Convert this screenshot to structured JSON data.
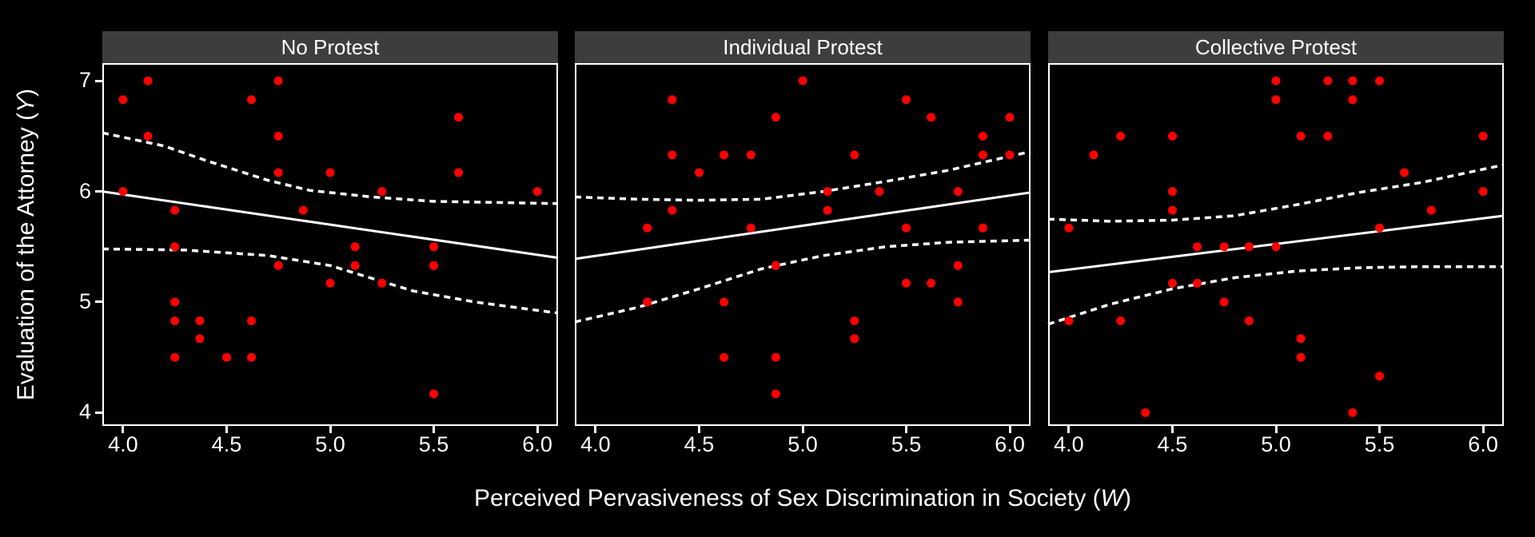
{
  "labels": {
    "x_prefix": "Perceived Pervasiveness of Sex Discrimination in Society (",
    "x_var": "W",
    "x_suffix": ")",
    "y_prefix": "Evaluation of the Attorney (",
    "y_var": "Y",
    "y_suffix": ")"
  },
  "chart_data": {
    "type": "scatter",
    "xlabel": "Perceived Pervasiveness of Sex Discrimination in Society (W)",
    "ylabel": "Evaluation of the Attorney (Y)",
    "x_range": [
      3.9,
      6.1
    ],
    "y_range": [
      3.88,
      7.16
    ],
    "x_ticks": {
      "values": [
        4.0,
        4.5,
        5.0,
        5.5,
        6.0
      ],
      "labels": [
        "4.0",
        "4.5",
        "5.0",
        "5.5",
        "6.0"
      ]
    },
    "y_ticks": {
      "values": [
        7,
        6,
        5,
        4
      ],
      "labels": [
        "7",
        "6",
        "5",
        "4"
      ]
    },
    "grid": "off",
    "legend": "none",
    "colors": {
      "background": "#000000",
      "panel_background": "#000000",
      "panel_border": "#ffffff",
      "strip_background": "#3d3d3d",
      "strip_text": "#ffffff",
      "point": "#ff0000",
      "fit_line": "#ffffff",
      "ci_line": "#ffffff",
      "tick": "#ffffff",
      "text": "#ffffff"
    },
    "facets": [
      {
        "label": "No Protest",
        "points": [
          [
            4.0,
            6.83
          ],
          [
            4.0,
            6.0
          ],
          [
            4.12,
            7.0
          ],
          [
            4.12,
            6.5
          ],
          [
            4.25,
            5.83
          ],
          [
            4.25,
            5.5
          ],
          [
            4.25,
            5.0
          ],
          [
            4.25,
            4.83
          ],
          [
            4.25,
            4.5
          ],
          [
            4.37,
            4.83
          ],
          [
            4.37,
            4.67
          ],
          [
            4.5,
            4.5
          ],
          [
            4.62,
            6.83
          ],
          [
            4.62,
            4.83
          ],
          [
            4.62,
            4.5
          ],
          [
            4.75,
            7.0
          ],
          [
            4.75,
            6.5
          ],
          [
            4.75,
            6.17
          ],
          [
            4.75,
            5.33
          ],
          [
            4.87,
            5.83
          ],
          [
            5.0,
            6.17
          ],
          [
            5.0,
            5.17
          ],
          [
            5.12,
            5.5
          ],
          [
            5.12,
            5.33
          ],
          [
            5.25,
            6.0
          ],
          [
            5.25,
            5.17
          ],
          [
            5.5,
            5.5
          ],
          [
            5.5,
            5.33
          ],
          [
            5.5,
            4.17
          ],
          [
            5.62,
            6.67
          ],
          [
            5.62,
            6.17
          ],
          [
            6.0,
            6.0
          ]
        ],
        "fit_line": [
          [
            3.9,
            6.0
          ],
          [
            6.1,
            5.4
          ]
        ],
        "ci_upper": [
          [
            3.9,
            6.53
          ],
          [
            4.2,
            6.41
          ],
          [
            4.4,
            6.28
          ],
          [
            4.7,
            6.1
          ],
          [
            4.9,
            6.01
          ],
          [
            5.2,
            5.95
          ],
          [
            5.5,
            5.91
          ],
          [
            5.8,
            5.9
          ],
          [
            6.1,
            5.89
          ]
        ],
        "ci_lower": [
          [
            3.9,
            5.48
          ],
          [
            4.3,
            5.47
          ],
          [
            4.7,
            5.42
          ],
          [
            5.0,
            5.33
          ],
          [
            5.4,
            5.1
          ],
          [
            5.7,
            5.0
          ],
          [
            6.1,
            4.9
          ]
        ]
      },
      {
        "label": "Individual Protest",
        "points": [
          [
            4.25,
            5.67
          ],
          [
            4.25,
            5.0
          ],
          [
            4.37,
            6.83
          ],
          [
            4.37,
            6.33
          ],
          [
            4.37,
            5.83
          ],
          [
            4.5,
            6.17
          ],
          [
            4.62,
            6.33
          ],
          [
            4.62,
            5.0
          ],
          [
            4.62,
            4.5
          ],
          [
            4.75,
            6.33
          ],
          [
            4.75,
            5.67
          ],
          [
            4.87,
            6.67
          ],
          [
            4.87,
            5.33
          ],
          [
            4.87,
            4.5
          ],
          [
            4.87,
            4.17
          ],
          [
            5.0,
            7.0
          ],
          [
            5.12,
            6.0
          ],
          [
            5.12,
            5.83
          ],
          [
            5.25,
            6.33
          ],
          [
            5.25,
            4.83
          ],
          [
            5.25,
            4.67
          ],
          [
            5.37,
            6.0
          ],
          [
            5.5,
            6.83
          ],
          [
            5.5,
            5.67
          ],
          [
            5.5,
            5.17
          ],
          [
            5.62,
            6.67
          ],
          [
            5.62,
            5.17
          ],
          [
            5.75,
            6.0
          ],
          [
            5.75,
            5.33
          ],
          [
            5.75,
            5.0
          ],
          [
            5.87,
            6.5
          ],
          [
            5.87,
            6.33
          ],
          [
            5.87,
            5.67
          ],
          [
            6.0,
            6.67
          ],
          [
            6.0,
            6.33
          ]
        ],
        "fit_line": [
          [
            3.9,
            5.39
          ],
          [
            6.1,
            5.99
          ]
        ],
        "ci_upper": [
          [
            3.9,
            5.95
          ],
          [
            4.2,
            5.93
          ],
          [
            4.5,
            5.92
          ],
          [
            4.8,
            5.93
          ],
          [
            5.1,
            6.0
          ],
          [
            5.4,
            6.09
          ],
          [
            5.7,
            6.19
          ],
          [
            6.1,
            6.36
          ]
        ],
        "ci_lower": [
          [
            3.9,
            4.82
          ],
          [
            4.2,
            4.95
          ],
          [
            4.5,
            5.12
          ],
          [
            4.8,
            5.3
          ],
          [
            5.1,
            5.42
          ],
          [
            5.4,
            5.5
          ],
          [
            5.7,
            5.54
          ],
          [
            6.1,
            5.56
          ]
        ]
      },
      {
        "label": "Collective Protest",
        "points": [
          [
            4.0,
            5.67
          ],
          [
            4.0,
            4.83
          ],
          [
            4.12,
            6.33
          ],
          [
            4.25,
            6.5
          ],
          [
            4.25,
            4.83
          ],
          [
            4.37,
            4.0
          ],
          [
            4.5,
            6.5
          ],
          [
            4.5,
            6.0
          ],
          [
            4.5,
            5.83
          ],
          [
            4.5,
            5.17
          ],
          [
            4.62,
            5.5
          ],
          [
            4.62,
            5.17
          ],
          [
            4.75,
            5.5
          ],
          [
            4.75,
            5.0
          ],
          [
            4.87,
            5.5
          ],
          [
            4.87,
            4.83
          ],
          [
            5.0,
            7.0
          ],
          [
            5.0,
            6.83
          ],
          [
            5.0,
            5.5
          ],
          [
            5.12,
            6.5
          ],
          [
            5.12,
            4.67
          ],
          [
            5.12,
            4.5
          ],
          [
            5.25,
            7.0
          ],
          [
            5.25,
            6.5
          ],
          [
            5.37,
            7.0
          ],
          [
            5.37,
            6.83
          ],
          [
            5.37,
            4.0
          ],
          [
            5.5,
            7.0
          ],
          [
            5.5,
            5.67
          ],
          [
            5.5,
            4.33
          ],
          [
            5.62,
            6.17
          ],
          [
            5.75,
            5.83
          ],
          [
            6.0,
            6.5
          ],
          [
            6.0,
            6.0
          ]
        ],
        "fit_line": [
          [
            3.9,
            5.27
          ],
          [
            6.1,
            5.78
          ]
        ],
        "ci_upper": [
          [
            3.9,
            5.75
          ],
          [
            4.2,
            5.73
          ],
          [
            4.5,
            5.74
          ],
          [
            4.8,
            5.78
          ],
          [
            5.1,
            5.88
          ],
          [
            5.4,
            5.99
          ],
          [
            5.7,
            6.08
          ],
          [
            6.1,
            6.24
          ]
        ],
        "ci_lower": [
          [
            3.9,
            4.8
          ],
          [
            4.2,
            4.98
          ],
          [
            4.5,
            5.12
          ],
          [
            4.8,
            5.22
          ],
          [
            5.1,
            5.28
          ],
          [
            5.4,
            5.31
          ],
          [
            5.7,
            5.32
          ],
          [
            6.1,
            5.32
          ]
        ]
      }
    ]
  }
}
